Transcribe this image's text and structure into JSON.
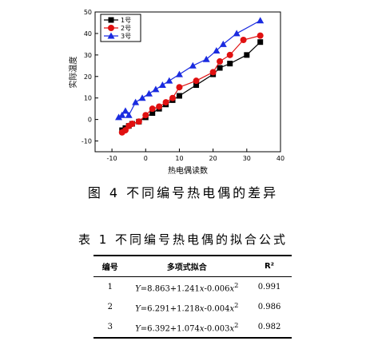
{
  "chart_data": {
    "type": "line",
    "xlabel": "热电偶读数",
    "ylabel": "实际温度",
    "xlim": [
      -15,
      40
    ],
    "ylim": [
      -15,
      50
    ],
    "xticks": [
      -10,
      0,
      10,
      20,
      30,
      40
    ],
    "yticks": [
      -10,
      0,
      10,
      20,
      30,
      40,
      50
    ],
    "legend_position": "top-left",
    "series": [
      {
        "name": "1号",
        "color": "#000000",
        "marker": "square",
        "x": [
          -7,
          -6,
          -5,
          -4,
          -2,
          0,
          2,
          4,
          6,
          8,
          10,
          15,
          20,
          22,
          25,
          30,
          34
        ],
        "y": [
          -5,
          -4,
          -3,
          -2,
          -1,
          1,
          3,
          5,
          7,
          9,
          11,
          16,
          21,
          24,
          26,
          30,
          36
        ]
      },
      {
        "name": "2号",
        "color": "#e01010",
        "marker": "circle",
        "x": [
          -7,
          -6,
          -5,
          -4,
          -2,
          0,
          2,
          4,
          6,
          8,
          10,
          15,
          20,
          22,
          25,
          29,
          34
        ],
        "y": [
          -6,
          -5,
          -3,
          -2,
          -1,
          2,
          5,
          6,
          8,
          10,
          15,
          18,
          22,
          27,
          30,
          37,
          39
        ]
      },
      {
        "name": "3号",
        "color": "#1a2be0",
        "marker": "triangle",
        "x": [
          -8,
          -7,
          -6,
          -5,
          -3,
          -1,
          1,
          3,
          5,
          7,
          10,
          14,
          18,
          21,
          23,
          27,
          34
        ],
        "y": [
          1,
          2,
          4,
          2,
          8,
          10,
          12,
          14,
          16,
          18,
          21,
          25,
          28,
          32,
          35,
          40,
          46
        ]
      }
    ]
  },
  "figure": {
    "caption": "图 4 不同编号热电偶的差异"
  },
  "table": {
    "caption": "表 1 不同编号热电偶的拟合公式",
    "headers": [
      "编号",
      "多项式拟合",
      "R²"
    ],
    "rows": [
      {
        "id": "1",
        "eq_prefix": "Y",
        "eq_a": "=8.863+1.241",
        "eq_b": "-0.006",
        "eq_exp": "2",
        "r2": "0.991"
      },
      {
        "id": "2",
        "eq_prefix": "Y",
        "eq_a": "=6.291+1.218",
        "eq_b": "-0.004",
        "eq_exp": "2",
        "r2": "0.986"
      },
      {
        "id": "3",
        "eq_prefix": "Y",
        "eq_a": "=6.392+1.074",
        "eq_b": "-0.003",
        "eq_exp": "2",
        "r2": "0.982"
      }
    ]
  }
}
